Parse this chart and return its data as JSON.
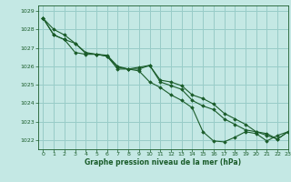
{
  "title": "Graphe pression niveau de la mer (hPa)",
  "bg_color": "#c4e8e4",
  "grid_color": "#98ccc8",
  "line_color": "#1a5c2a",
  "marker_color": "#1a5c2a",
  "xlim": [
    -0.5,
    23
  ],
  "ylim": [
    1021.5,
    1029.3
  ],
  "yticks": [
    1022,
    1023,
    1024,
    1025,
    1026,
    1027,
    1028,
    1029
  ],
  "xticks": [
    0,
    1,
    2,
    3,
    4,
    5,
    6,
    7,
    8,
    9,
    10,
    11,
    12,
    13,
    14,
    15,
    16,
    17,
    18,
    19,
    20,
    21,
    22,
    23
  ],
  "hours": [
    0,
    1,
    2,
    3,
    4,
    5,
    6,
    7,
    8,
    9,
    10,
    11,
    12,
    13,
    14,
    15,
    16,
    17,
    18,
    19,
    20,
    21,
    22,
    23
  ],
  "line1": [
    1028.6,
    1028.0,
    1027.7,
    1027.25,
    1026.7,
    1026.65,
    1026.6,
    1026.0,
    1025.85,
    1025.75,
    1025.15,
    1024.85,
    1024.45,
    1024.15,
    1023.75,
    1022.45,
    1021.95,
    1021.9,
    1022.15,
    1022.45,
    1022.35,
    1021.95,
    1022.25,
    1022.45
  ],
  "line2": [
    1028.6,
    1027.7,
    1027.45,
    1026.75,
    1026.65,
    1026.65,
    1026.55,
    1025.85,
    1025.85,
    1025.95,
    1026.05,
    1025.25,
    1025.15,
    1024.95,
    1024.45,
    1024.25,
    1023.95,
    1023.45,
    1023.15,
    1022.85,
    1022.45,
    1022.25,
    1022.05,
    1022.45
  ],
  "line3": [
    1028.6,
    1027.7,
    1027.45,
    1027.25,
    1026.75,
    1026.65,
    1026.55,
    1025.95,
    1025.85,
    1025.85,
    1026.05,
    1025.15,
    1024.95,
    1024.75,
    1024.15,
    1023.85,
    1023.65,
    1023.15,
    1022.85,
    1022.55,
    1022.45,
    1022.35,
    1022.05,
    1022.45
  ]
}
